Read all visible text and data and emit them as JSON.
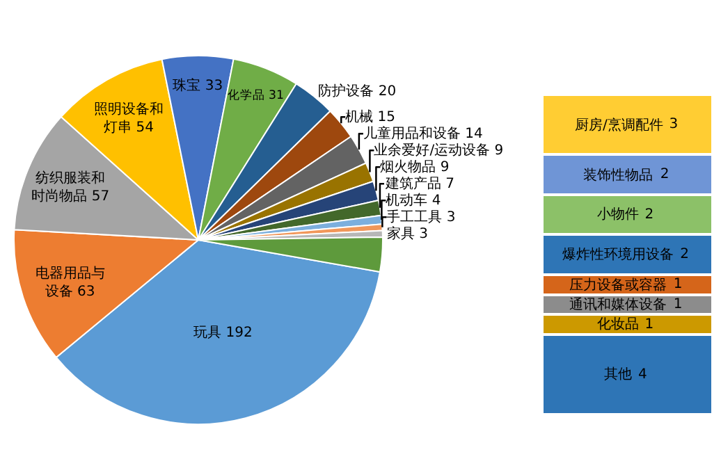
{
  "chart_data": [
    {
      "type": "pie",
      "categories": [
        "玩具 192",
        "电器用品与设备 63",
        "纺织服装和时尚物品 57",
        "照明设备和灯串 54",
        "珠宝 33",
        "化学品 31",
        "防护设备 20",
        "机械 15",
        "儿童用品和设备 14",
        "业余爱好/运动设备 9",
        "烟火物品 9",
        "建筑产品 7",
        "机动车 4",
        "手工工具 3",
        "家具 3",
        null
      ],
      "values": [
        192,
        63,
        57,
        54,
        33,
        31,
        20,
        15,
        14,
        9,
        9,
        7,
        4,
        3,
        3,
        16
      ],
      "colors": [
        "#5b9bd5",
        "#ed7d31",
        "#a5a5a5",
        "#ffc000",
        "#4472c4",
        "#70ad47",
        "#255e91",
        "#9e480e",
        "#636363",
        "#997300",
        "#264478",
        "#43682b",
        "#7cafdd",
        "#f1975a",
        "#b7b7b7",
        "#5e9a3c"
      ]
    },
    {
      "type": "bar",
      "stacked": true,
      "categories": [
        null
      ],
      "data_labels": true,
      "series": [
        {
          "name": "其他",
          "color": "#2e75b6",
          "values": [
            4
          ]
        },
        {
          "name": "化妆品",
          "color": "#cc9900",
          "values": [
            1
          ]
        },
        {
          "name": "通讯和媒体设备",
          "color": "#8c8c8c",
          "values": [
            1
          ]
        },
        {
          "name": "压力设备或容器",
          "color": "#d5651a",
          "values": [
            1
          ]
        },
        {
          "name": "爆炸性环境用设备",
          "color": "#2e75b6",
          "values": [
            2
          ]
        },
        {
          "name": "小物件",
          "color": "#8cc168",
          "values": [
            2
          ]
        },
        {
          "name": "装饰性物品",
          "color": "#6f95d6",
          "values": [
            2
          ]
        },
        {
          "name": "厨房/烹调配件",
          "color": "#ffcd33",
          "values": [
            3
          ]
        }
      ]
    }
  ]
}
